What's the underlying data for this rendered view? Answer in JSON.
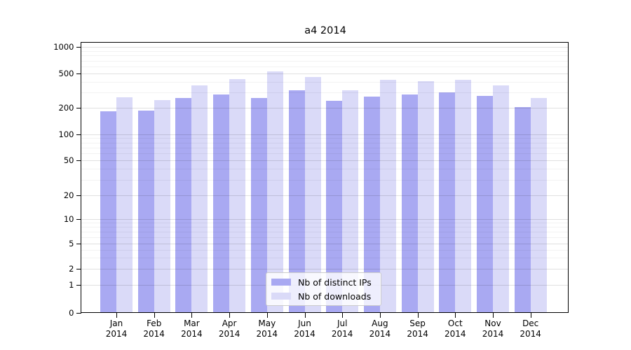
{
  "chart_data": {
    "type": "bar",
    "title": "a4 2014",
    "categories": [
      "Jan",
      "Feb",
      "Mar",
      "Apr",
      "May",
      "Jun",
      "Jul",
      "Aug",
      "Sep",
      "Oct",
      "Nov",
      "Dec"
    ],
    "x_axis_year": "2014",
    "series": [
      {
        "name": "Nb of distinct IPs",
        "color": "#a9a9f2",
        "values": [
          185,
          186,
          259,
          285,
          263,
          319,
          243,
          270,
          285,
          300,
          277,
          203
        ]
      },
      {
        "name": "Nb of downloads",
        "color": "#dadaf8",
        "values": [
          265,
          245,
          363,
          434,
          525,
          455,
          320,
          426,
          406,
          421,
          363,
          263
        ]
      }
    ],
    "y_axis": {
      "scale": "symlog",
      "ticks": [
        0,
        1,
        2,
        5,
        10,
        20,
        50,
        100,
        200,
        500,
        1000
      ],
      "ylim": [
        0,
        1130
      ]
    },
    "grid": {
      "horizontal_major": true,
      "horizontal_minor": true,
      "vertical": false
    },
    "legend": {
      "position": "lower-center"
    }
  }
}
